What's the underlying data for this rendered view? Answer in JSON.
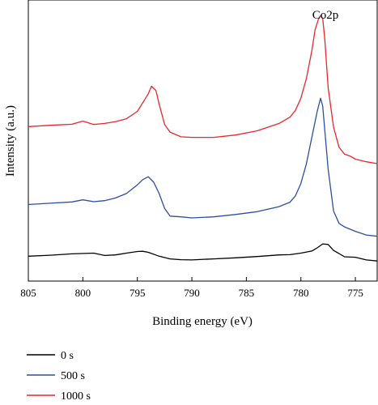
{
  "chart_data": {
    "type": "line",
    "title": "",
    "xlabel": "Binding energy (eV)",
    "ylabel": "Intensity (a.u.)",
    "xlim": [
      805,
      773
    ],
    "x_reversed": true,
    "ylim": [
      0,
      100
    ],
    "x_ticks": [
      805,
      800,
      795,
      790,
      785,
      780,
      775
    ],
    "y_tick_labels": false,
    "grid": false,
    "legend_position": "bottom-left",
    "annotation": "Co2p",
    "series": [
      {
        "name": "0 s",
        "color": "#000000",
        "x": [
          805,
          803,
          801,
          799,
          798,
          797,
          796,
          795,
          794.5,
          794,
          793,
          792,
          791,
          790,
          788,
          786,
          784,
          782,
          781,
          780,
          779,
          778.5,
          778,
          777.5,
          777,
          776.5,
          776,
          775,
          774,
          773
        ],
        "y": [
          7.3,
          7.7,
          8.2,
          8.5,
          7.6,
          7.8,
          8.5,
          9.1,
          9.2,
          8.8,
          7.3,
          6.3,
          6.0,
          5.9,
          6.3,
          6.7,
          7.2,
          7.8,
          7.9,
          8.5,
          9.3,
          10.5,
          12.0,
          11.8,
          9.5,
          8.3,
          7.1,
          6.9,
          5.9,
          5.5
        ]
      },
      {
        "name": "500 s",
        "color": "#2b4f9e",
        "x": [
          805,
          803,
          801,
          800,
          799,
          798,
          797,
          796,
          795,
          794.5,
          794,
          793.5,
          793,
          792.5,
          792,
          791,
          790,
          788,
          786,
          784,
          782,
          781,
          780.5,
          780,
          779.5,
          779,
          778.5,
          778.2,
          778,
          777.5,
          777,
          776.5,
          776,
          775,
          774,
          773
        ],
        "y": [
          27,
          27.5,
          28,
          28.8,
          28.1,
          28.5,
          29.5,
          31.2,
          34.5,
          36.5,
          37.6,
          35.5,
          31.2,
          25.5,
          22.6,
          22.3,
          21.9,
          22.3,
          23.2,
          24.3,
          26.2,
          27.9,
          30.3,
          35.0,
          42.5,
          52.5,
          62.5,
          67.5,
          64.5,
          40.5,
          24.5,
          19.8,
          18.5,
          16.8,
          15.4,
          14.9
        ]
      },
      {
        "name": "1000 s",
        "color": "#e8262c",
        "x": [
          805,
          803,
          801,
          800,
          799,
          798,
          797,
          796,
          795,
          794.5,
          794,
          793.7,
          793.3,
          793,
          792.5,
          792,
          791,
          790,
          788,
          786,
          784,
          782,
          781,
          780.5,
          780,
          779.5,
          779,
          778.7,
          778.4,
          778.2,
          778,
          777.8,
          777.5,
          777,
          776.5,
          776,
          775.5,
          775,
          774,
          773
        ],
        "y": [
          56.7,
          57.2,
          57.6,
          58.8,
          57.5,
          57.9,
          58.6,
          59.7,
          62.5,
          65.8,
          69.2,
          72.1,
          70.5,
          65.3,
          57.5,
          54.6,
          52.8,
          52.6,
          52.6,
          53.5,
          55.1,
          57.9,
          60.3,
          62.9,
          67.5,
          75.0,
          85.5,
          93.5,
          97.5,
          99.0,
          98.0,
          89.5,
          71.5,
          56.5,
          48.8,
          46.2,
          45.5,
          44.3,
          43.3,
          42.6
        ]
      }
    ]
  }
}
